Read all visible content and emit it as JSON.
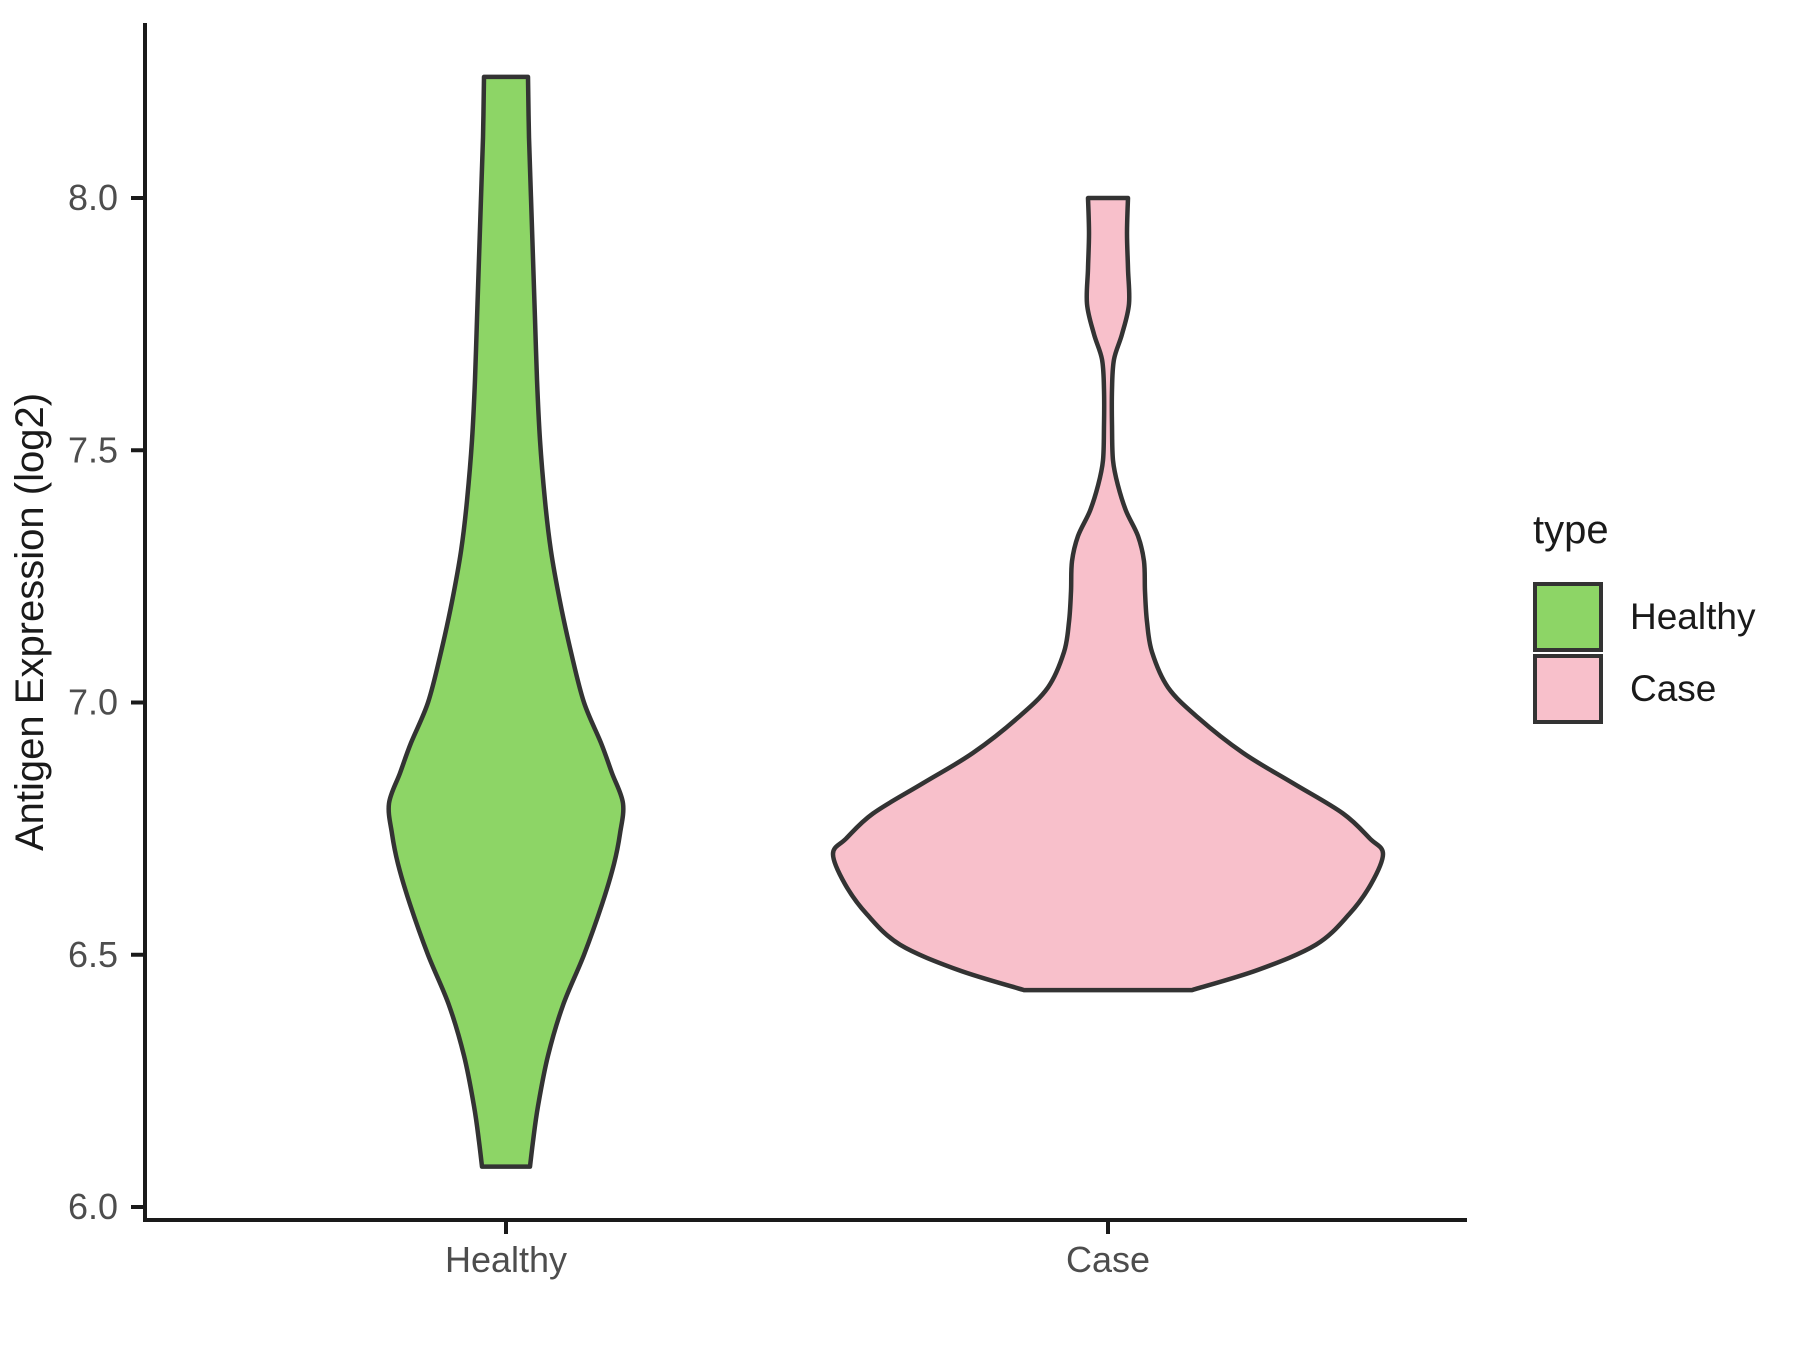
{
  "colors": {
    "background": "#ffffff",
    "axis_line": "#1a1a1a",
    "axis_text": "#4d4d4d",
    "text": "#1a1a1a",
    "violin_outline": "#333333",
    "healthy_fill": "#8DD566",
    "case_fill": "#F8C0CB"
  },
  "chart_data": {
    "type": "violin",
    "title": "",
    "xlabel": "",
    "ylabel": "Antigen Expression (log2)",
    "categories": [
      "Healthy",
      "Case"
    ],
    "grid": false,
    "y_axis": {
      "tick_labels": [
        "6.0",
        "6.5",
        "7.0",
        "7.5",
        "8.0"
      ],
      "tick_values": [
        6.0,
        6.5,
        7.0,
        7.5,
        8.0
      ],
      "range_shown": [
        5.95,
        8.35
      ]
    },
    "legend": {
      "title": "type",
      "position": "right",
      "entries": [
        {
          "label": "Healthy",
          "color": "#8DD566"
        },
        {
          "label": "Case",
          "color": "#F8C0CB"
        }
      ]
    },
    "series": [
      {
        "name": "Healthy",
        "fill": "#8DD566",
        "outline": "#333333",
        "value_range": [
          6.08,
          8.24
        ],
        "peak_density_at": 6.8,
        "profile": [
          [
            8.24,
            22
          ],
          [
            8.12,
            23
          ],
          [
            8.0,
            25
          ],
          [
            7.88,
            27
          ],
          [
            7.76,
            29
          ],
          [
            7.64,
            31
          ],
          [
            7.52,
            34
          ],
          [
            7.4,
            39
          ],
          [
            7.3,
            45
          ],
          [
            7.2,
            54
          ],
          [
            7.1,
            65
          ],
          [
            7.0,
            78
          ],
          [
            6.92,
            95
          ],
          [
            6.86,
            106
          ],
          [
            6.8,
            117
          ],
          [
            6.74,
            114
          ],
          [
            6.68,
            108
          ],
          [
            6.6,
            96
          ],
          [
            6.5,
            78
          ],
          [
            6.4,
            57
          ],
          [
            6.3,
            42
          ],
          [
            6.2,
            32
          ],
          [
            6.13,
            27
          ],
          [
            6.08,
            24
          ]
        ]
      },
      {
        "name": "Case",
        "fill": "#F8C0CB",
        "outline": "#333333",
        "value_range": [
          6.43,
          8.0
        ],
        "peak_density_at": 6.7,
        "pinch_at": 7.6,
        "profile": [
          [
            8.0,
            20
          ],
          [
            7.93,
            19
          ],
          [
            7.86,
            20
          ],
          [
            7.79,
            21
          ],
          [
            7.73,
            14
          ],
          [
            7.68,
            6
          ],
          [
            7.62,
            4
          ],
          [
            7.55,
            4
          ],
          [
            7.48,
            5
          ],
          [
            7.43,
            10
          ],
          [
            7.38,
            18
          ],
          [
            7.33,
            30
          ],
          [
            7.28,
            36
          ],
          [
            7.22,
            37
          ],
          [
            7.16,
            39
          ],
          [
            7.1,
            44
          ],
          [
            7.03,
            60
          ],
          [
            6.97,
            90
          ],
          [
            6.9,
            135
          ],
          [
            6.84,
            185
          ],
          [
            6.78,
            235
          ],
          [
            6.73,
            262
          ],
          [
            6.7,
            275
          ],
          [
            6.64,
            263
          ],
          [
            6.58,
            241
          ],
          [
            6.52,
            208
          ],
          [
            6.47,
            150
          ],
          [
            6.43,
            84
          ]
        ]
      }
    ]
  }
}
